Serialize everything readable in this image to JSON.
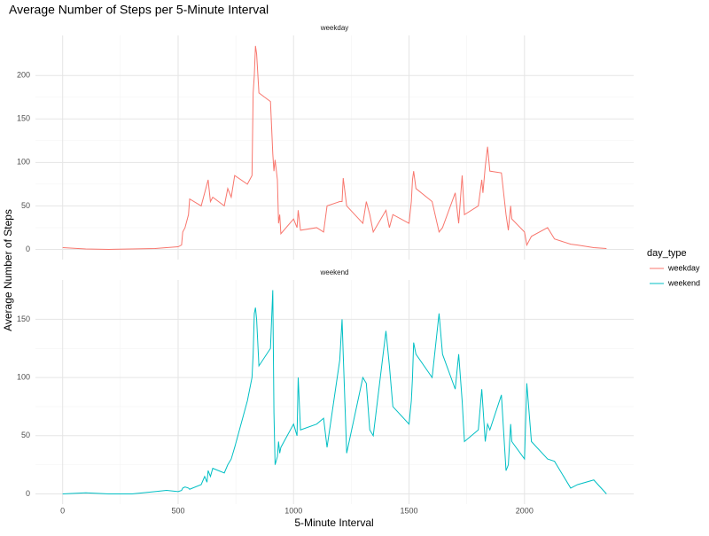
{
  "chart_data": {
    "type": "line",
    "facet": true,
    "title": "Average Number of Steps per 5-Minute Interval",
    "xlabel": "5-Minute Interval",
    "ylabel": "Average Number of Steps",
    "legend_title": "day_type",
    "legend": "right",
    "grid": true,
    "xlim": [
      -117.75,
      2472.75
    ],
    "xticks": [
      0,
      500,
      1000,
      1500,
      2000
    ],
    "x": [
      0,
      100,
      200,
      300,
      400,
      450,
      500,
      515,
      520,
      530,
      545,
      550,
      600,
      615,
      625,
      630,
      640,
      650,
      700,
      715,
      730,
      745,
      800,
      820,
      825,
      830,
      835,
      840,
      850,
      900,
      910,
      915,
      920,
      930,
      935,
      940,
      945,
      1000,
      1015,
      1020,
      1030,
      1100,
      1130,
      1145,
      1200,
      1210,
      1215,
      1230,
      1300,
      1315,
      1330,
      1345,
      1400,
      1415,
      1430,
      1500,
      1510,
      1515,
      1520,
      1530,
      1600,
      1630,
      1645,
      1700,
      1715,
      1730,
      1740,
      1800,
      1815,
      1820,
      1830,
      1840,
      1850,
      1900,
      1920,
      1930,
      1940,
      1945,
      2000,
      2010,
      2030,
      2100,
      2130,
      2200,
      2230,
      2300,
      2355
    ],
    "series": [
      {
        "name": "weekday",
        "color": "#f8766d",
        "ylim": [
          -11.72,
          246.07
        ],
        "yticks": [
          0,
          50,
          100,
          150,
          200
        ],
        "values": [
          2,
          0.5,
          0,
          0.5,
          1,
          2,
          3,
          5,
          20,
          25,
          40,
          58,
          50,
          65,
          75,
          80,
          55,
          60,
          50,
          70,
          60,
          85,
          75,
          85,
          180,
          200,
          234,
          225,
          180,
          170,
          110,
          90,
          103,
          80,
          30,
          40,
          18,
          35,
          25,
          45,
          22,
          25,
          20,
          50,
          55,
          55,
          82,
          50,
          30,
          55,
          40,
          20,
          45,
          25,
          40,
          30,
          55,
          80,
          90,
          70,
          55,
          20,
          25,
          65,
          30,
          85,
          40,
          50,
          80,
          65,
          95,
          118,
          90,
          88,
          40,
          22,
          50,
          35,
          20,
          5,
          15,
          25,
          12,
          6,
          5,
          2,
          1
        ]
      },
      {
        "name": "weekend",
        "color": "#00bfc4",
        "ylim": [
          -8.75,
          183.8
        ],
        "yticks": [
          0,
          50,
          100,
          150
        ],
        "values": [
          0,
          1,
          0,
          0,
          2,
          3,
          2,
          3,
          5,
          6,
          5,
          4,
          8,
          15,
          10,
          20,
          15,
          22,
          18,
          25,
          30,
          40,
          80,
          100,
          120,
          155,
          160,
          150,
          110,
          125,
          175,
          70,
          25,
          32,
          45,
          35,
          40,
          60,
          50,
          100,
          55,
          60,
          65,
          40,
          115,
          150,
          120,
          35,
          100,
          95,
          55,
          50,
          140,
          110,
          75,
          60,
          80,
          100,
          130,
          120,
          100,
          155,
          120,
          90,
          120,
          80,
          45,
          55,
          90,
          75,
          45,
          60,
          55,
          85,
          20,
          25,
          60,
          45,
          30,
          95,
          45,
          30,
          28,
          5,
          8,
          12,
          0
        ]
      }
    ]
  }
}
